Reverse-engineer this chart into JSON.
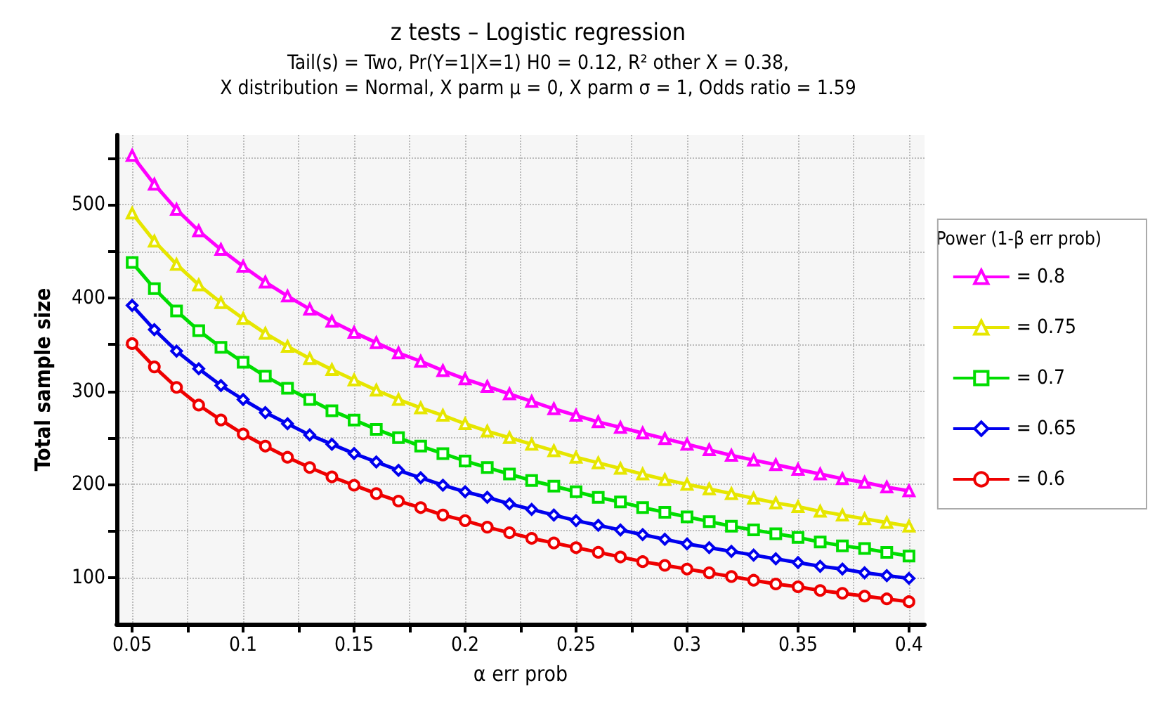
{
  "chart_data": {
    "type": "line",
    "title": "z tests – Logistic regression",
    "subtitle": "Tail(s) = Two, Pr(Y=1|X=1) H0 = 0.12, R² other X = 0.38,\nX distribution = Normal, X parm μ = 0, X parm σ = 1, Odds ratio = 1.59",
    "xlabel": "α err prob",
    "ylabel": "Total sample size",
    "legend_title": "Power (1-β err prob)",
    "x": [
      0.05,
      0.06,
      0.07,
      0.08,
      0.09,
      0.1,
      0.11,
      0.12,
      0.13,
      0.14,
      0.15,
      0.16,
      0.17,
      0.18,
      0.19,
      0.2,
      0.21,
      0.22,
      0.23,
      0.24,
      0.25,
      0.26,
      0.27,
      0.28,
      0.29,
      0.3,
      0.31,
      0.32,
      0.33,
      0.34,
      0.35,
      0.36,
      0.37,
      0.38,
      0.39,
      0.4
    ],
    "series": [
      {
        "name": "= 0.8",
        "color": "#ff00ff",
        "marker": "triangle",
        "values": [
          553,
          522,
          495,
          472,
          452,
          434,
          417,
          402,
          388,
          375,
          363,
          352,
          341,
          332,
          322,
          313,
          305,
          297,
          289,
          281,
          274,
          267,
          261,
          255,
          249,
          243,
          237,
          231,
          226,
          221,
          216,
          211,
          206,
          202,
          197,
          193
        ]
      },
      {
        "name": "= 0.75",
        "color": "#e6e600",
        "marker": "triangle",
        "values": [
          491,
          461,
          436,
          414,
          395,
          378,
          362,
          348,
          335,
          323,
          312,
          301,
          291,
          282,
          274,
          265,
          257,
          250,
          243,
          236,
          229,
          223,
          217,
          211,
          205,
          200,
          195,
          190,
          185,
          180,
          176,
          171,
          167,
          163,
          159,
          155
        ]
      },
      {
        "name": "= 0.7",
        "color": "#00dd00",
        "marker": "square",
        "values": [
          438,
          410,
          386,
          365,
          347,
          331,
          316,
          303,
          291,
          279,
          269,
          259,
          250,
          241,
          233,
          225,
          218,
          211,
          204,
          198,
          192,
          186,
          181,
          175,
          170,
          165,
          160,
          155,
          151,
          147,
          143,
          138,
          134,
          131,
          127,
          123
        ]
      },
      {
        "name": "= 0.65",
        "color": "#0000ee",
        "marker": "diamond",
        "values": [
          392,
          366,
          343,
          324,
          306,
          291,
          277,
          265,
          253,
          243,
          233,
          224,
          215,
          207,
          199,
          192,
          186,
          179,
          173,
          167,
          161,
          156,
          151,
          146,
          141,
          136,
          132,
          128,
          124,
          120,
          116,
          112,
          109,
          105,
          102,
          99
        ]
      },
      {
        "name": "= 0.6",
        "color": "#ee0000",
        "marker": "circle",
        "values": [
          351,
          326,
          304,
          285,
          269,
          254,
          241,
          229,
          218,
          208,
          199,
          190,
          182,
          175,
          167,
          161,
          154,
          148,
          142,
          137,
          132,
          127,
          122,
          117,
          113,
          109,
          105,
          101,
          97,
          93,
          90,
          86,
          83,
          80,
          77,
          74
        ]
      }
    ],
    "xlim": [
      0.043,
      0.407
    ],
    "xticks": [
      0.05,
      {
        "value": 0.075,
        "label": null
      },
      0.1,
      {
        "value": 0.125,
        "label": null
      },
      0.15,
      {
        "value": 0.175,
        "label": null
      },
      0.2,
      {
        "value": 0.225,
        "label": null
      },
      0.25,
      {
        "value": 0.275,
        "label": null
      },
      0.3,
      {
        "value": 0.325,
        "label": null
      },
      0.35,
      {
        "value": 0.375,
        "label": null
      },
      0.4
    ],
    "ylim": [
      50,
      575
    ],
    "yticks": [
      100,
      {
        "value": 150,
        "label": null
      },
      200,
      {
        "value": 250,
        "label": null
      },
      300,
      {
        "value": 350,
        "label": null
      },
      400,
      {
        "value": 450,
        "label": null
      },
      500,
      {
        "value": 550,
        "label": null
      }
    ],
    "grid": true,
    "legend": "right",
    "line_style": "solid"
  }
}
